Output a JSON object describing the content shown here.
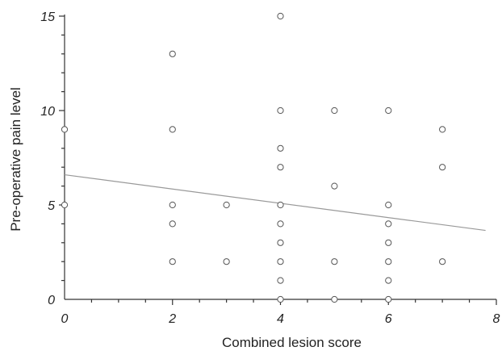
{
  "chart_data": {
    "type": "scatter",
    "title": "",
    "xlabel": "Combined lesion score",
    "ylabel": "Pre-operative pain level",
    "xlim": [
      0,
      8
    ],
    "ylim": [
      0,
      15
    ],
    "xticks": [
      "0",
      "2",
      "4",
      "6",
      "8"
    ],
    "yticks": [
      "0",
      "5",
      "10",
      "15"
    ],
    "x_minor_step": 0.5,
    "y_minor_step": 1,
    "grid": false,
    "legend": "none",
    "points": [
      {
        "x": 0,
        "y": 9
      },
      {
        "x": 0,
        "y": 5
      },
      {
        "x": 2,
        "y": 13
      },
      {
        "x": 2,
        "y": 9
      },
      {
        "x": 2,
        "y": 5
      },
      {
        "x": 2,
        "y": 4
      },
      {
        "x": 2,
        "y": 2
      },
      {
        "x": 3,
        "y": 5
      },
      {
        "x": 3,
        "y": 2
      },
      {
        "x": 4,
        "y": 15
      },
      {
        "x": 4,
        "y": 10
      },
      {
        "x": 4,
        "y": 8
      },
      {
        "x": 4,
        "y": 7
      },
      {
        "x": 4,
        "y": 5
      },
      {
        "x": 4,
        "y": 4
      },
      {
        "x": 4,
        "y": 3
      },
      {
        "x": 4,
        "y": 2
      },
      {
        "x": 4,
        "y": 1
      },
      {
        "x": 4,
        "y": 0
      },
      {
        "x": 5,
        "y": 10
      },
      {
        "x": 5,
        "y": 6
      },
      {
        "x": 5,
        "y": 2
      },
      {
        "x": 5,
        "y": 0
      },
      {
        "x": 6,
        "y": 10
      },
      {
        "x": 6,
        "y": 5
      },
      {
        "x": 6,
        "y": 4
      },
      {
        "x": 6,
        "y": 3
      },
      {
        "x": 6,
        "y": 2
      },
      {
        "x": 6,
        "y": 1
      },
      {
        "x": 6,
        "y": 0
      },
      {
        "x": 7,
        "y": 9
      },
      {
        "x": 7,
        "y": 7
      },
      {
        "x": 7,
        "y": 2
      }
    ],
    "trendline": {
      "x": [
        0,
        7.8
      ],
      "y": [
        6.6,
        3.65
      ]
    },
    "colors": {
      "points_stroke": "#555555",
      "trendline": "#999999",
      "axis": "#333333"
    }
  }
}
